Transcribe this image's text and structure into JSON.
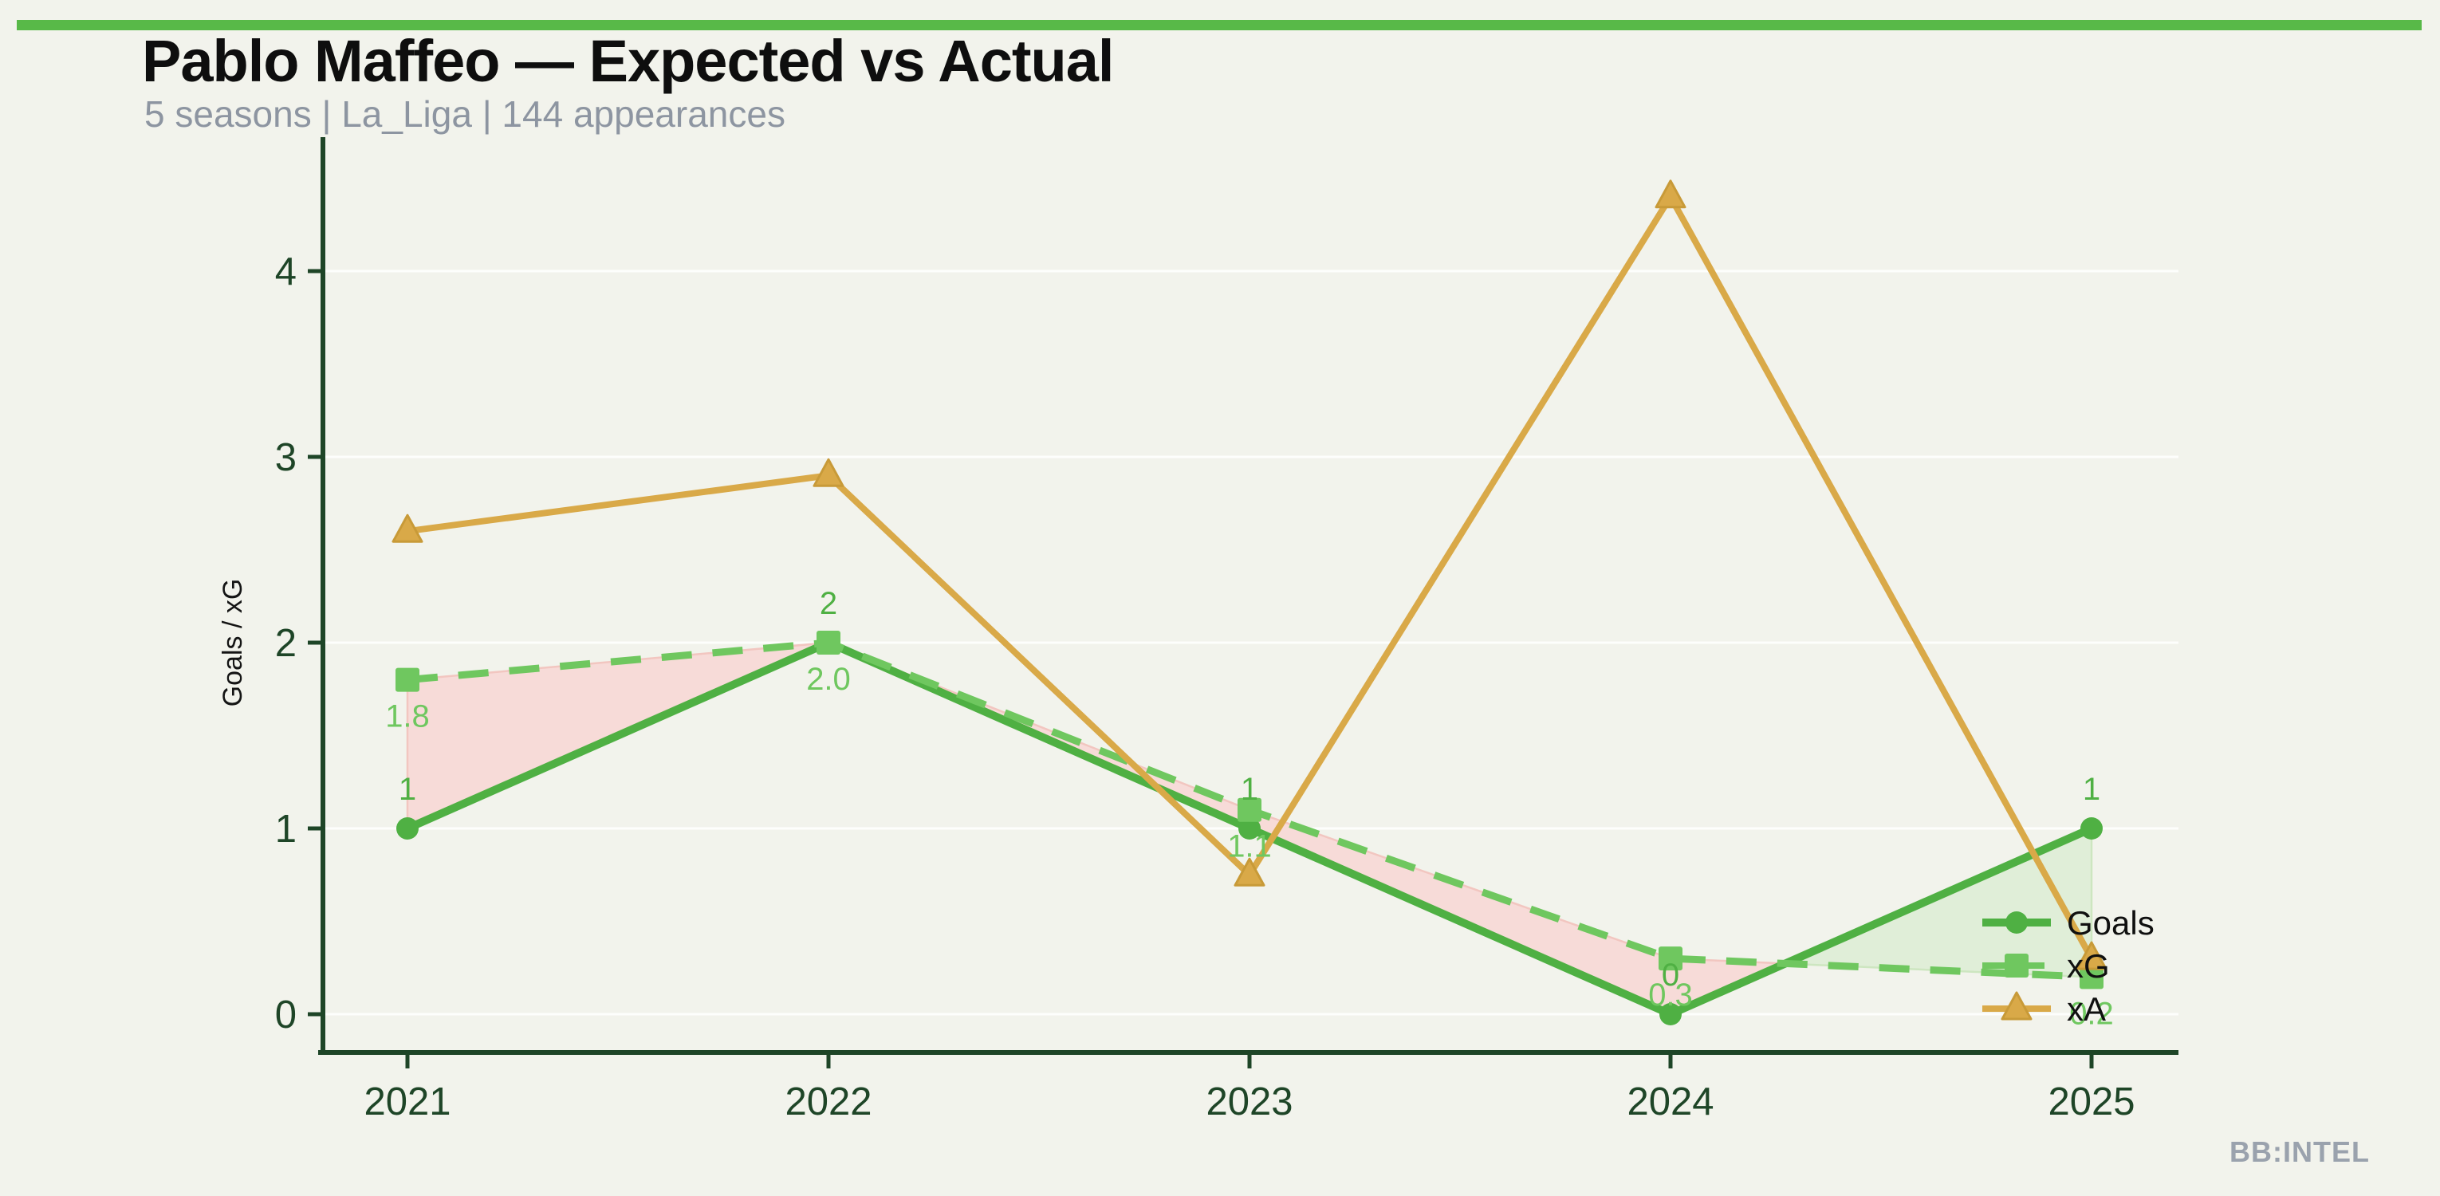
{
  "header": {
    "title": "Pablo Maffeo — Expected vs Actual",
    "subtitle": "5 seasons | La_Liga | 144 appearances"
  },
  "footer": {
    "brand": "BB:INTEL"
  },
  "page_style": {
    "background": "#f2f3ec",
    "accent_bar_color": "#58b948"
  },
  "chart_data": {
    "type": "line",
    "title": "Pablo Maffeo — Expected vs Actual",
    "categories": [
      "2021",
      "2022",
      "2023",
      "2024",
      "2025"
    ],
    "series": [
      {
        "name": "Goals",
        "values": [
          1,
          2,
          1,
          0,
          1
        ],
        "point_labels": [
          "1",
          "2",
          "1",
          "0",
          "1"
        ],
        "color": "#4fb043",
        "marker": "circle",
        "line_style": "solid",
        "label_position": "above"
      },
      {
        "name": "xG",
        "values": [
          1.8,
          2.0,
          1.1,
          0.3,
          0.2
        ],
        "point_labels": [
          "1.8",
          "2.0",
          "1.1",
          "0.3",
          "0.2"
        ],
        "color": "#6fc75f",
        "marker": "square",
        "line_style": "dashed",
        "label_position": "below"
      },
      {
        "name": "xA",
        "values": [
          2.6,
          2.9,
          0.75,
          4.4,
          0.3
        ],
        "point_labels": [],
        "color": "#d9a948",
        "marker": "triangle",
        "line_style": "solid",
        "label_position": "none"
      }
    ],
    "xlabel": "",
    "ylabel": "Goals / xG",
    "yticks": [
      0,
      1,
      2,
      3,
      4
    ],
    "ylim": [
      -0.2,
      4.7
    ],
    "grid": true,
    "legend": {
      "position": "lower right",
      "entries": [
        "Goals",
        "xG",
        "xA"
      ]
    },
    "fills": {
      "xg_above_goals_color": "#f7dbd8",
      "xg_above_goals_edge": "#f2c6c0",
      "goals_above_xg_color": "#e0eed8",
      "goals_above_xg_edge": "#cde6c0"
    },
    "style": {
      "axis_color": "#1e4527",
      "tick_label_color": "#1e4527",
      "grid_color": "rgba(255,255,255,0.85)",
      "data_label_font_px": 40
    }
  }
}
